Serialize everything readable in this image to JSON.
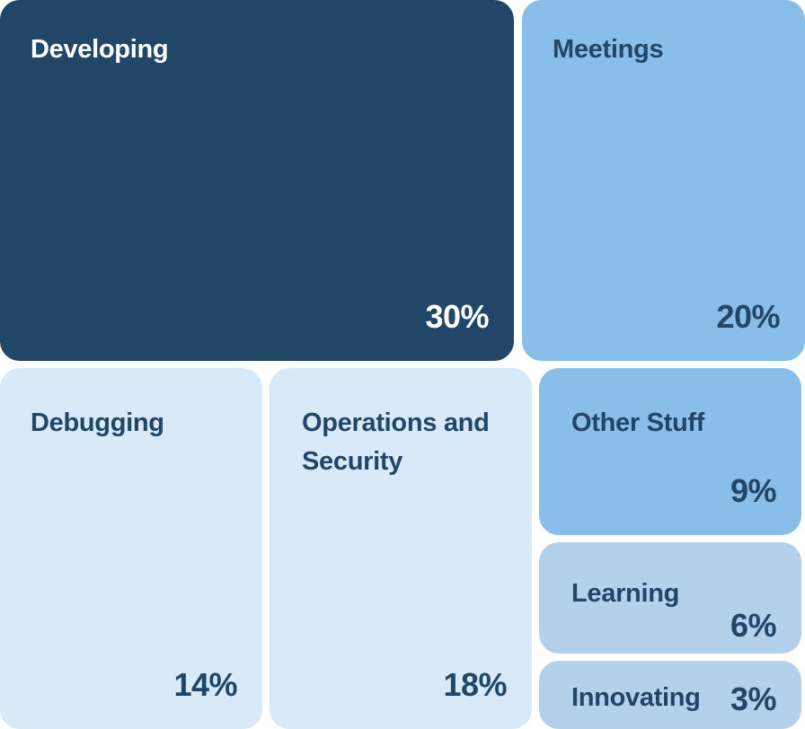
{
  "chart_data": {
    "type": "treemap",
    "items": [
      {
        "label": "Developing",
        "value": 30,
        "display": "30%",
        "color": "#224668",
        "text_color": "#ffffff"
      },
      {
        "label": "Meetings",
        "value": 20,
        "display": "20%",
        "color": "#89BEEA",
        "text_color": "#224668"
      },
      {
        "label": "Debugging",
        "value": 14,
        "display": "14%",
        "color": "#D8E9F7",
        "text_color": "#224668"
      },
      {
        "label": "Operations and Security",
        "value": 18,
        "display": "18%",
        "color": "#D8E9F7",
        "text_color": "#224668"
      },
      {
        "label": "Other Stuff",
        "value": 9,
        "display": "9%",
        "color": "#89BEEA",
        "text_color": "#224668"
      },
      {
        "label": "Learning",
        "value": 6,
        "display": "6%",
        "color": "#B3D1EA",
        "text_color": "#224668"
      },
      {
        "label": "Innovating",
        "value": 3,
        "display": "3%",
        "color": "#B3D1EA",
        "text_color": "#224668"
      }
    ]
  }
}
